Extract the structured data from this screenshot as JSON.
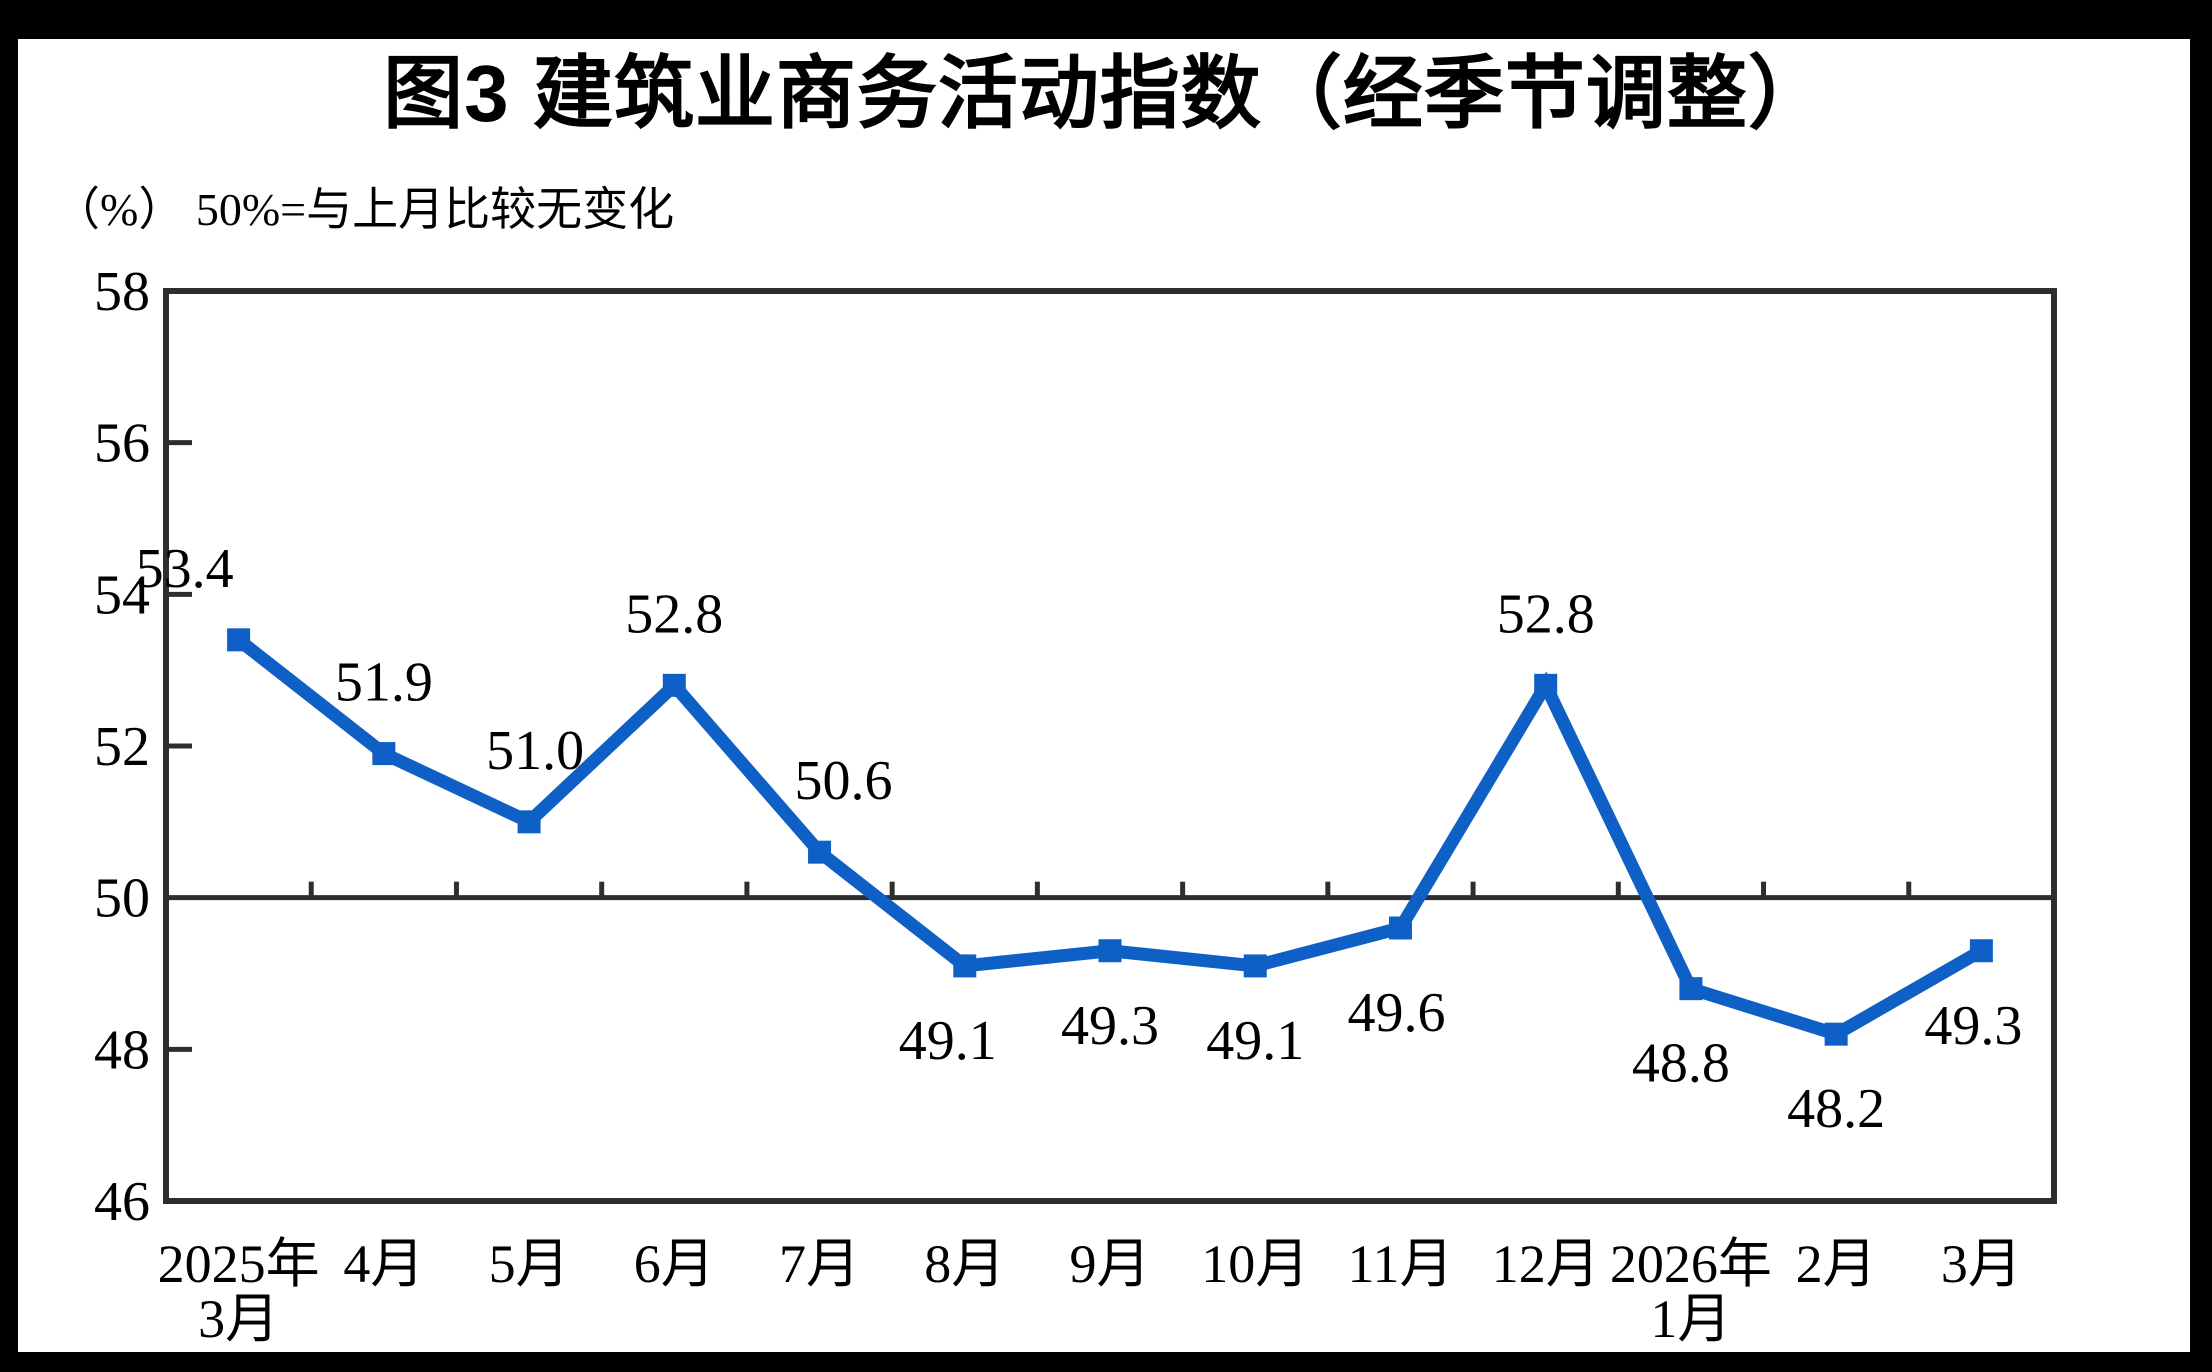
{
  "figure": {
    "title": "图3 建筑业商务活动指数（经季节调整）",
    "unit_note": "（%） 50%=与上月比较无变化"
  },
  "chart_data": {
    "type": "line",
    "title": "图3 建筑业商务活动指数（经季节调整）",
    "unit_note": "（%） 50%=与上月比较无变化",
    "categories": [
      {
        "lines": [
          "2025年",
          "3月"
        ]
      },
      {
        "lines": [
          "4月"
        ]
      },
      {
        "lines": [
          "5月"
        ]
      },
      {
        "lines": [
          "6月"
        ]
      },
      {
        "lines": [
          "7月"
        ]
      },
      {
        "lines": [
          "8月"
        ]
      },
      {
        "lines": [
          "9月"
        ]
      },
      {
        "lines": [
          "10月"
        ]
      },
      {
        "lines": [
          "11月"
        ]
      },
      {
        "lines": [
          "12月"
        ]
      },
      {
        "lines": [
          "2026年",
          "1月"
        ]
      },
      {
        "lines": [
          "2月"
        ]
      },
      {
        "lines": [
          "3月"
        ]
      }
    ],
    "values": [
      53.4,
      51.9,
      51.0,
      52.8,
      50.6,
      49.1,
      49.3,
      49.1,
      49.6,
      52.8,
      48.8,
      48.2,
      49.3
    ],
    "data_labels": [
      "53.4",
      "51.9",
      "51.0",
      "52.8",
      "50.6",
      "49.1",
      "49.3",
      "49.1",
      "49.6",
      "52.8",
      "48.8",
      "48.2",
      "49.3"
    ],
    "label_placement": [
      {
        "side": "above",
        "dx": -54
      },
      {
        "side": "above",
        "dx": 0
      },
      {
        "side": "above",
        "dx": 6
      },
      {
        "side": "above",
        "dx": 0
      },
      {
        "side": "above",
        "dx": 24
      },
      {
        "side": "below",
        "dx": -17
      },
      {
        "side": "below",
        "dx": 0
      },
      {
        "side": "below",
        "dx": 0
      },
      {
        "side": "below",
        "dx": -4,
        "dy": 10
      },
      {
        "side": "above",
        "dx": 0
      },
      {
        "side": "below",
        "dx": -10
      },
      {
        "side": "below",
        "dx": 0
      },
      {
        "side": "below",
        "dx": -8
      }
    ],
    "y_axis": {
      "min": 46,
      "max": 58,
      "step": 2,
      "ticks": [
        58,
        56,
        54,
        52,
        50,
        48,
        46
      ]
    },
    "ylim": [
      46,
      58
    ],
    "reference_line": 50,
    "grid": "off",
    "legend": "none",
    "colors": {
      "line": "#0E60C6",
      "axis": "#2E2E2E",
      "text": "#000000"
    }
  }
}
